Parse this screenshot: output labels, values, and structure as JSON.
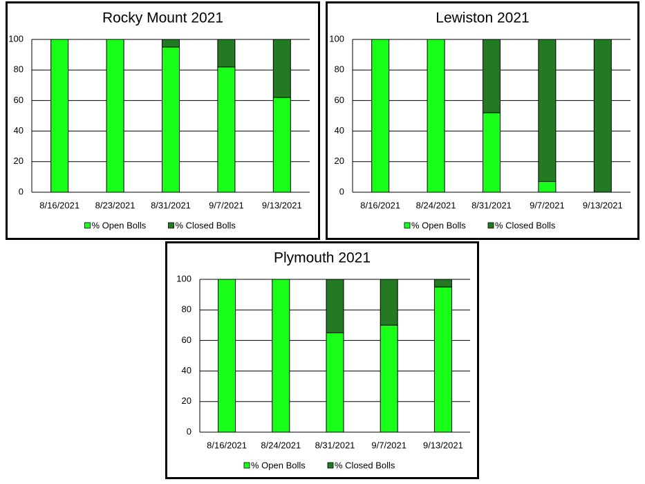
{
  "chart_data": [
    {
      "type": "stacked_bar",
      "title": "Rocky Mount 2021",
      "categories": [
        "8/16/2021",
        "8/23/2021",
        "8/31/2021",
        "9/7/2021",
        "9/13/2021"
      ],
      "series": [
        {
          "name": "% Open Bolls",
          "color": "#1aff1a",
          "values": [
            100,
            100,
            95,
            82,
            62
          ]
        },
        {
          "name": "% Closed Bolls",
          "color": "#237a23",
          "values": [
            0,
            0,
            5,
            18,
            38
          ]
        }
      ],
      "ylim": [
        0,
        100
      ],
      "yticks": [
        0,
        20,
        40,
        60,
        80,
        100
      ],
      "grid": true,
      "legend": "bottom"
    },
    {
      "type": "stacked_bar",
      "title": "Lewiston 2021",
      "categories": [
        "8/16/2021",
        "8/24/2021",
        "8/31/2021",
        "9/7/2021",
        "9/13/2021"
      ],
      "series": [
        {
          "name": "% Open Bolls",
          "color": "#1aff1a",
          "values": [
            100,
            100,
            52,
            7,
            0
          ]
        },
        {
          "name": "% Closed Bolls",
          "color": "#237a23",
          "values": [
            0,
            0,
            48,
            93,
            100
          ]
        }
      ],
      "ylim": [
        0,
        100
      ],
      "yticks": [
        0,
        20,
        40,
        60,
        80,
        100
      ],
      "grid": true,
      "legend": "bottom"
    },
    {
      "type": "stacked_bar",
      "title": "Plymouth 2021",
      "categories": [
        "8/16/2021",
        "8/24/2021",
        "8/31/2021",
        "9/7/2021",
        "9/13/2021"
      ],
      "series": [
        {
          "name": "% Open Bolls",
          "color": "#1aff1a",
          "values": [
            100,
            100,
            65,
            70,
            95
          ]
        },
        {
          "name": "% Closed Bolls",
          "color": "#237a23",
          "values": [
            0,
            0,
            35,
            30,
            5
          ]
        }
      ],
      "ylim": [
        0,
        100
      ],
      "yticks": [
        0,
        20,
        40,
        60,
        80,
        100
      ],
      "grid": true,
      "legend": "bottom"
    }
  ]
}
